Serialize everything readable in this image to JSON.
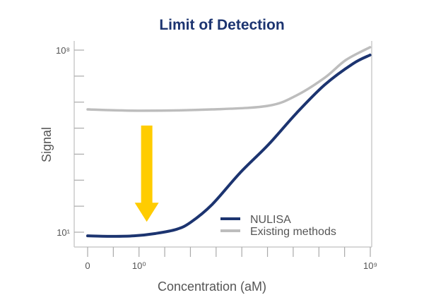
{
  "chart_data": {
    "type": "line",
    "title": "Limit of Detection",
    "xlabel": "Concentration (aM)",
    "ylabel": "Signal",
    "x_scale": "log-ish (tick index)",
    "xlim": [
      0,
      11
    ],
    "ylim_log10": [
      1,
      8
    ],
    "x_ticks": [
      0,
      1,
      2,
      3,
      4,
      5,
      6,
      7,
      8,
      9,
      10,
      11
    ],
    "x_tick_labels": [
      {
        "at": 0,
        "label": "0"
      },
      {
        "at": 2,
        "label": "10⁰"
      },
      {
        "at": 11,
        "label": "10⁹"
      }
    ],
    "y_ticks": [
      1,
      2,
      3,
      4,
      5,
      6,
      7,
      8
    ],
    "y_tick_labels": [
      {
        "at": 1,
        "label": "10¹"
      },
      {
        "at": 8,
        "label": "10⁸"
      }
    ],
    "legend_position": "bottom-right",
    "series": [
      {
        "name": "NULISA",
        "color": "#1c3470",
        "x": [
          0,
          0.99,
          1.81,
          2.64,
          3.46,
          4.01,
          4.84,
          5.93,
          7.03,
          8.13,
          9.23,
          10.33,
          10.99
        ],
        "y": [
          0.86,
          0.84,
          0.86,
          0.95,
          1.11,
          1.38,
          2.06,
          3.28,
          4.36,
          5.58,
          6.67,
          7.48,
          7.81
        ]
      },
      {
        "name": "Existing methods",
        "color": "#bdbdbd",
        "x": [
          0,
          2.09,
          4.84,
          7.03,
          8.13,
          9.23,
          10.05,
          10.99
        ],
        "y": [
          5.72,
          5.67,
          5.72,
          5.86,
          6.26,
          6.94,
          7.62,
          8.11
        ]
      }
    ],
    "annotation": {
      "type": "arrow",
      "direction": "down",
      "color": "#ffcc00",
      "x": 2.3,
      "y_from": 5.1,
      "y_to": 1.4
    }
  }
}
